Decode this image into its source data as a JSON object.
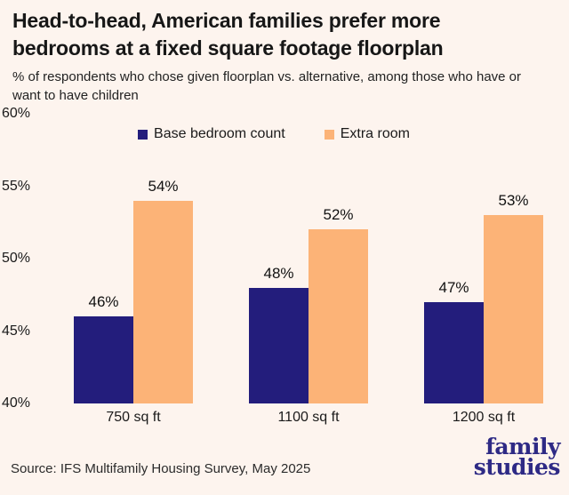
{
  "header": {
    "title": "Head-to-head, American families prefer more bedrooms at a fixed square footage floorplan",
    "subtitle": "% of respondents who chose given floorplan vs. alternative, among those who have or want to have children"
  },
  "chart_data": {
    "type": "bar",
    "categories": [
      "750 sq ft",
      "1100 sq ft",
      "1200 sq ft"
    ],
    "series": [
      {
        "name": "Base bedroom count",
        "color": "#231d7c",
        "values": [
          46,
          48,
          47
        ]
      },
      {
        "name": "Extra room",
        "color": "#fcb377",
        "values": [
          54,
          52,
          53
        ]
      }
    ],
    "data_label_format": "percent",
    "ylim": [
      40,
      60
    ],
    "yticks": [
      60,
      55,
      50,
      45,
      40
    ],
    "grid": false,
    "legend_position": "top"
  },
  "footer": {
    "source": "Source: IFS Multifamily Housing Survey, May 2025",
    "logo_line1": "family",
    "logo_line2": "studies"
  },
  "colors": {
    "background": "#fdf4ee",
    "bar_navy": "#231d7c",
    "bar_orange": "#fcb377",
    "logo_navy": "#2e2a85",
    "text": "#1a1a1a"
  }
}
